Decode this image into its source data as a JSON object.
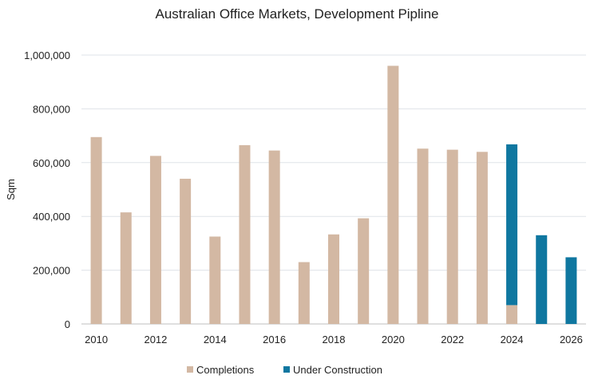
{
  "chart_data": {
    "type": "bar",
    "stacked": true,
    "title": "Australian Office Markets, Development Pipline",
    "ylabel": "Sqm",
    "xlabel": "",
    "ylim": [
      0,
      1000000
    ],
    "y_ticks": [
      "0",
      "200,000",
      "400,000",
      "600,000",
      "800,000",
      "1,000,000"
    ],
    "y_tick_values": [
      0,
      200000,
      400000,
      600000,
      800000,
      1000000
    ],
    "categories": [
      "2010",
      "2011",
      "2012",
      "2013",
      "2014",
      "2015",
      "2016",
      "2017",
      "2018",
      "2019",
      "2020",
      "2021",
      "2022",
      "2023",
      "2024",
      "2025",
      "2026"
    ],
    "x_tick_labels": [
      "2010",
      "2012",
      "2014",
      "2016",
      "2018",
      "2020",
      "2022",
      "2024",
      "2026"
    ],
    "series": [
      {
        "name": "Completions",
        "color": "#d3b8a3",
        "values": [
          695000,
          415000,
          625000,
          540000,
          325000,
          665000,
          645000,
          230000,
          333000,
          393000,
          960000,
          652000,
          648000,
          640000,
          70000,
          0,
          0
        ]
      },
      {
        "name": "Under Construction",
        "color": "#0f77a0",
        "values": [
          0,
          0,
          0,
          0,
          0,
          0,
          0,
          0,
          0,
          0,
          0,
          0,
          0,
          0,
          598000,
          330000,
          248000
        ]
      }
    ],
    "grid": true,
    "legend_position": "bottom"
  }
}
